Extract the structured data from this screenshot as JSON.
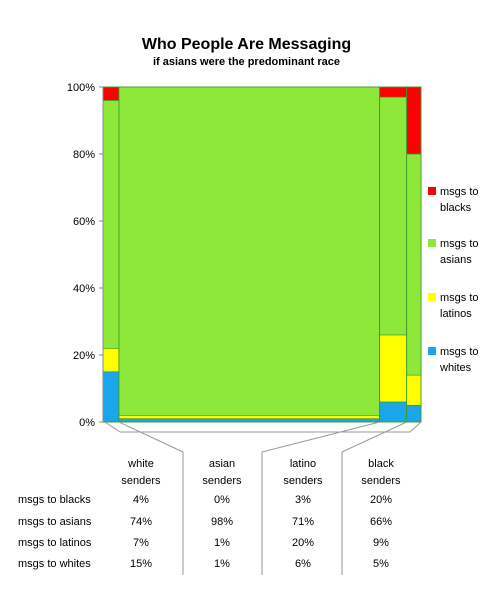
{
  "chart_data": {
    "type": "marimekko",
    "title": "Who People Are Messaging",
    "subtitle": "if asians were the predominant race",
    "ylim": [
      0,
      100
    ],
    "yticks": [
      "0%",
      "20%",
      "40%",
      "60%",
      "80%",
      "100%"
    ],
    "senders": [
      {
        "label_line1": "white",
        "label_line2": "senders",
        "width_share": 5.0
      },
      {
        "label_line1": "asian",
        "label_line2": "senders",
        "width_share": 82.0
      },
      {
        "label_line1": "latino",
        "label_line2": "senders",
        "width_share": 8.5
      },
      {
        "label_line1": "black",
        "label_line2": "senders",
        "width_share": 4.5
      }
    ],
    "series": [
      {
        "name": "msgs to blacks",
        "legend_line1": "msgs to",
        "legend_line2": "blacks",
        "color": "#ff0000",
        "values": [
          4,
          0,
          3,
          20
        ],
        "labels": [
          "4%",
          "0%",
          "3%",
          "20%"
        ]
      },
      {
        "name": "msgs to asians",
        "legend_line1": "msgs to",
        "legend_line2": "asians",
        "color": "#8ee83a",
        "values": [
          74,
          98,
          71,
          66
        ],
        "labels": [
          "74%",
          "98%",
          "71%",
          "66%"
        ]
      },
      {
        "name": "msgs to latinos",
        "legend_line1": "msgs to",
        "legend_line2": "latinos",
        "color": "#ffff00",
        "values": [
          7,
          1,
          20,
          9
        ],
        "labels": [
          "7%",
          "1%",
          "20%",
          "9%"
        ]
      },
      {
        "name": "msgs to whites",
        "legend_line1": "msgs to",
        "legend_line2": "whites",
        "color": "#1aa6e8",
        "values": [
          15,
          1,
          6,
          5
        ],
        "labels": [
          "15%",
          "1%",
          "6%",
          "5%"
        ]
      }
    ]
  }
}
